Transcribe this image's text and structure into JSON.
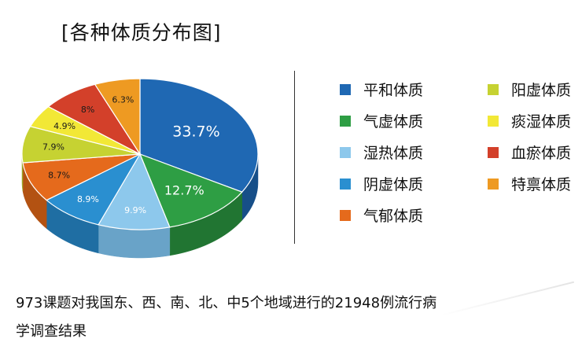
{
  "title": "[各种体质分布图]",
  "caption_line1": "973课题对我国东、西、南、北、中5个地域进行的21948例流行病",
  "caption_line2": "学调查结果",
  "chart_data": {
    "type": "pie",
    "title": "[各种体质分布图]",
    "slices": [
      {
        "name": "平和体质",
        "value": 33.7,
        "label": "33.7%",
        "color": "#1f68b3",
        "side": "#174f88"
      },
      {
        "name": "气虚体质",
        "value": 12.7,
        "label": "12.7%",
        "color": "#2e9e44",
        "side": "#217532"
      },
      {
        "name": "湿热体质",
        "value": 9.9,
        "label": "9.9%",
        "color": "#8dc8ec",
        "side": "#69a3c8"
      },
      {
        "name": "阴虚体质",
        "value": 8.9,
        "label": "8.9%",
        "color": "#2a8fd0",
        "side": "#1f6ea3"
      },
      {
        "name": "气郁体质",
        "value": 8.7,
        "label": "8.7%",
        "color": "#e56a1c",
        "side": "#b35212"
      },
      {
        "name": "阳虚体质",
        "value": 7.9,
        "label": "7.9%",
        "color": "#c6d232",
        "side": "#9ca626"
      },
      {
        "name": "痰湿体质",
        "value": 4.9,
        "label": "4.9%",
        "color": "#f2e836",
        "side": "#c1b824"
      },
      {
        "name": "血瘀体质",
        "value": 8,
        "label": "8%",
        "color": "#d3402a",
        "side": "#a2301f"
      },
      {
        "name": "特禀体质",
        "value": 6.3,
        "label": "6.3%",
        "color": "#ee9a22",
        "side": "#bd7717"
      }
    ],
    "legend": {
      "placement": "right",
      "columns": [
        [
          "平和体质",
          "气虚体质",
          "湿热体质",
          "阴虚体质",
          "气郁体质"
        ],
        [
          "阳虚体质",
          "痰湿体质",
          "血瘀体质",
          "特禀体质"
        ]
      ]
    }
  }
}
